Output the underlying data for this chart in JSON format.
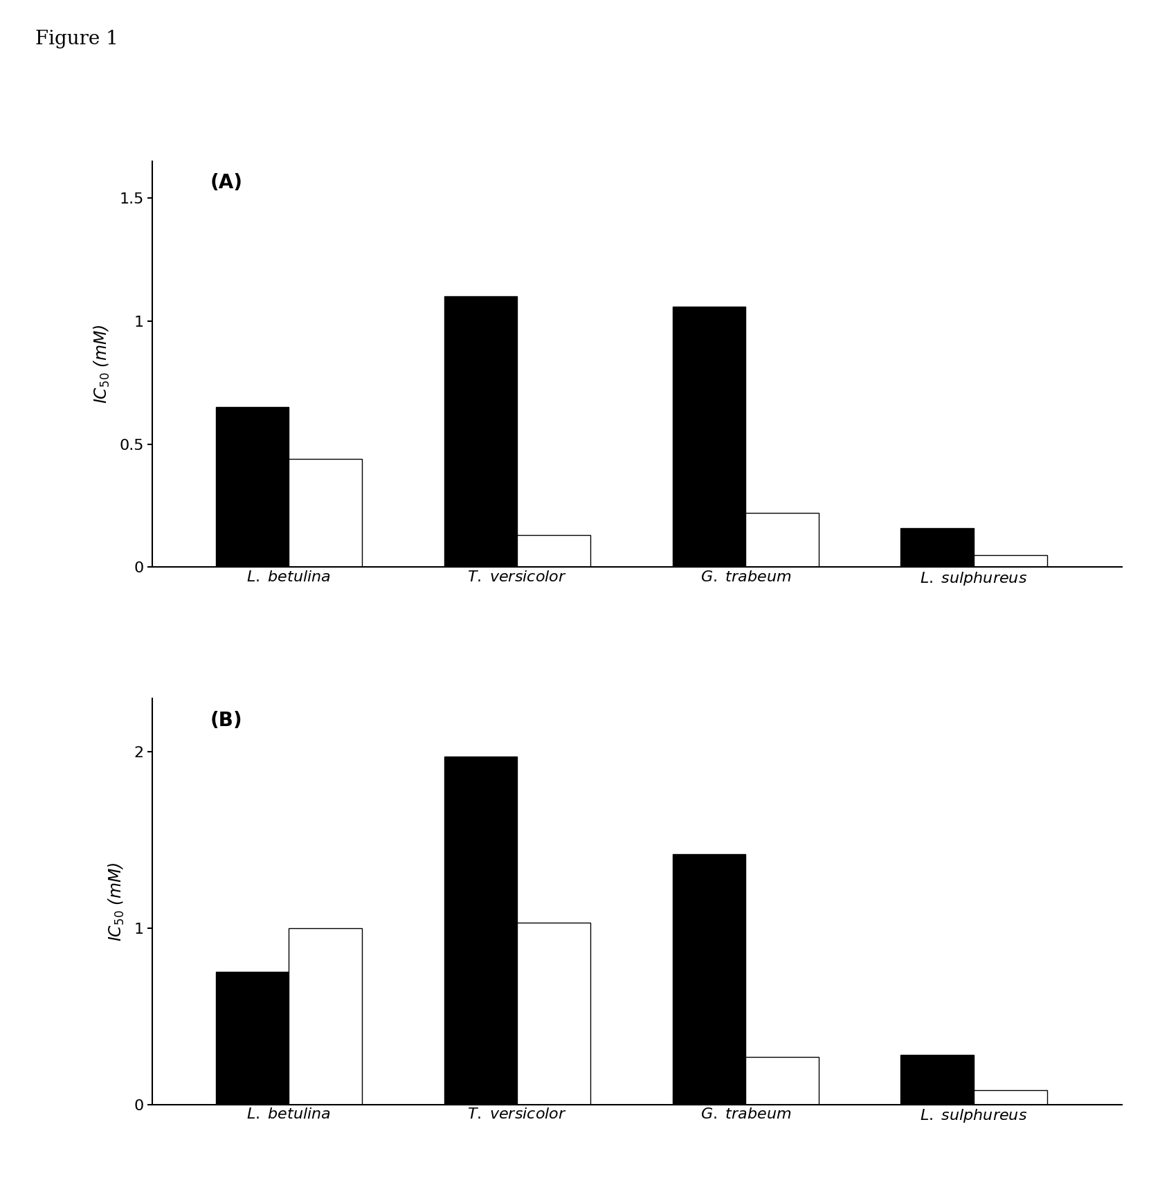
{
  "figure_label": "Figure 1",
  "panel_A": {
    "label": "(A)",
    "ylabel": "IC$_{50}$ (mM)",
    "yticks": [
      0,
      0.5,
      1.0,
      1.5
    ],
    "ylim": [
      0,
      1.65
    ],
    "categories": [
      "L. betulina",
      "T. versicolor",
      "G. trabeum",
      "L. sulphureus"
    ],
    "black_bars": [
      0.65,
      1.1,
      1.06,
      0.16
    ],
    "white_bars": [
      0.44,
      0.13,
      0.22,
      0.05
    ]
  },
  "panel_B": {
    "label": "(B)",
    "ylabel": "IC$_{50}$ (mM)",
    "yticks": [
      0,
      1.0,
      2.0
    ],
    "ylim": [
      0,
      2.3
    ],
    "categories": [
      "L. betulina",
      "T. versicolor",
      "G. trabeum",
      "L. sulphureus"
    ],
    "black_bars": [
      0.75,
      1.97,
      1.42,
      0.28
    ],
    "white_bars": [
      1.0,
      1.03,
      0.27,
      0.08
    ]
  },
  "bar_width": 0.32,
  "black_color": "#000000",
  "white_color": "#ffffff",
  "bar_edge_color": "#000000",
  "background_color": "#ffffff",
  "figure_label_fontsize": 20,
  "panel_label_fontsize": 20,
  "axis_label_fontsize": 17,
  "tick_fontsize": 16,
  "category_fontsize": 16
}
